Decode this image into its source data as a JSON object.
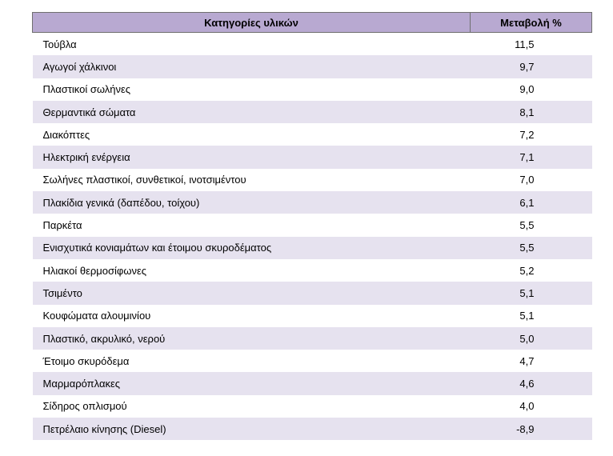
{
  "table": {
    "headers": {
      "category": "Κατηγορίες υλικών",
      "change": "Μεταβολή %"
    },
    "rows": [
      {
        "category": "Τούβλα",
        "change": "11,5"
      },
      {
        "category": "Αγωγοί χάλκινοι",
        "change": "9,7"
      },
      {
        "category": "Πλαστικοί σωλήνες",
        "change": "9,0"
      },
      {
        "category": "Θερμαντικά σώματα",
        "change": "8,1"
      },
      {
        "category": "Διακόπτες",
        "change": "7,2"
      },
      {
        "category": "Ηλεκτρική ενέργεια",
        "change": "7,1"
      },
      {
        "category": "Σωλήνες πλαστικοί, συνθετικοί, ινοτσιμέντου",
        "change": "7,0"
      },
      {
        "category": "Πλακίδια γενικά (δαπέδου, τοίχου)",
        "change": "6,1"
      },
      {
        "category": "Παρκέτα",
        "change": "5,5"
      },
      {
        "category": "Ενισχυτικά κονιαμάτων και έτοιμου σκυροδέματος",
        "change": "5,5"
      },
      {
        "category": "Ηλιακοί θερμοσίφωνες",
        "change": "5,2"
      },
      {
        "category": "Τσιμέντο",
        "change": "5,1"
      },
      {
        "category": "Κουφώματα αλουμινίου",
        "change": "5,1"
      },
      {
        "category": "Πλαστικό, ακρυλικό, νερού",
        "change": "5,0"
      },
      {
        "category": "Έτοιμο σκυρόδεμα",
        "change": "4,7"
      },
      {
        "category": "Μαρμαρόπλακες",
        "change": "4,6"
      },
      {
        "category": "Σίδηρος οπλισμού",
        "change": "4,0"
      },
      {
        "category": "Πετρέλαιο κίνησης (Diesel)",
        "change": "-8,9"
      }
    ]
  }
}
